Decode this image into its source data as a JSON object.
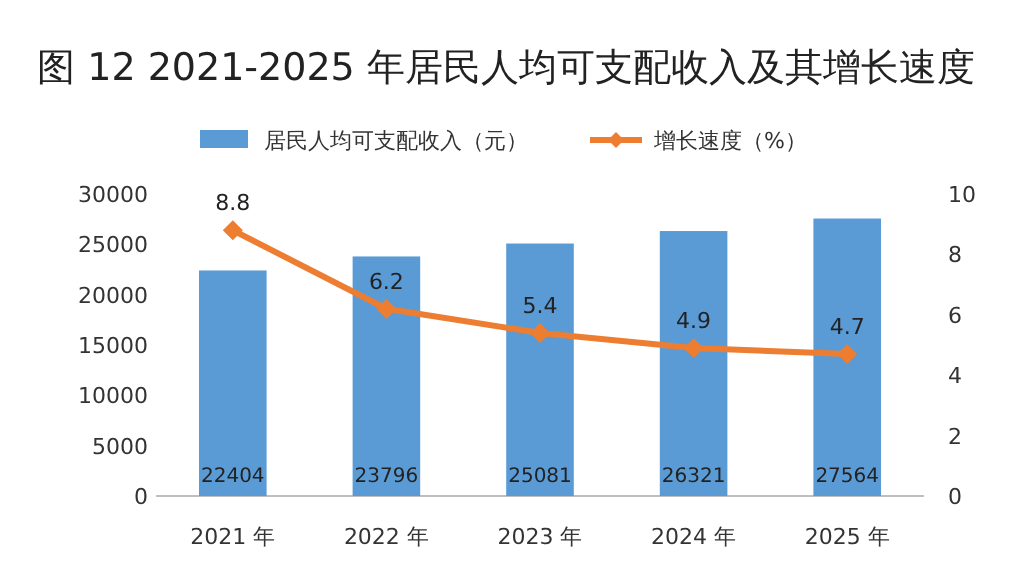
{
  "chart_data": {
    "type": "bar",
    "title": "图 12 2021-2025 年居民人均可支配收入及其增长速度",
    "categories": [
      "2021 年",
      "2022 年",
      "2023 年",
      "2024 年",
      "2025 年"
    ],
    "series": [
      {
        "name": "居民人均可支配收入（元）",
        "color": "#5b9bd5",
        "values": [
          22404,
          23796,
          25081,
          26321,
          27564
        ]
      },
      {
        "name": "增长速度（%）",
        "type": "line",
        "axis": "y2",
        "color": "#ed7d31",
        "values": [
          8.8,
          6.2,
          5.4,
          4.9,
          4.7
        ]
      }
    ],
    "ylim": [
      0,
      30000
    ],
    "yticks": [
      0,
      5000,
      10000,
      15000,
      20000,
      25000,
      30000
    ],
    "y2lim": [
      0,
      10
    ],
    "y2ticks": [
      0,
      2,
      4,
      6,
      8,
      10
    ],
    "marker": "diamond",
    "data_labels": true,
    "legend": "top"
  }
}
